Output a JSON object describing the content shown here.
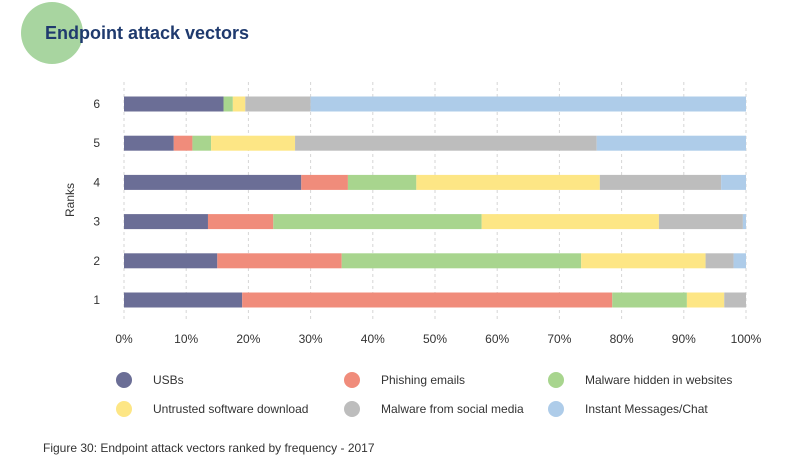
{
  "page": {
    "caption": "Figure 30: Endpoint attack vectors ranked by frequency - 2017"
  },
  "colors": {
    "title_badge": "#a8d5a0",
    "title_text": "#1f3a6e",
    "axis_text": "#333333",
    "grid": "#d6d6d6"
  },
  "chart_data": {
    "type": "bar",
    "orientation": "horizontal",
    "stacked": true,
    "title": "Endpoint attack vectors",
    "ylabel": "Ranks",
    "xlabel": "",
    "categories": [
      "1",
      "2",
      "3",
      "4",
      "5",
      "6"
    ],
    "xlim": [
      0,
      100
    ],
    "xticks": [
      "0%",
      "10%",
      "20%",
      "30%",
      "40%",
      "50%",
      "60%",
      "70%",
      "80%",
      "90%",
      "100%"
    ],
    "grid": "vertical dashed",
    "legend_position": "bottom",
    "series": [
      {
        "name": "USBs",
        "color": "#6b6e96",
        "values": [
          19,
          15,
          13.5,
          28.5,
          8,
          16
        ]
      },
      {
        "name": "Phishing emails",
        "color": "#f08c7b",
        "values": [
          59.5,
          20,
          10.5,
          7.5,
          3,
          0
        ]
      },
      {
        "name": "Malware hidden in websites",
        "color": "#a8d58e",
        "values": [
          12,
          38.5,
          33.5,
          11,
          3,
          1.5
        ]
      },
      {
        "name": "Untrusted software download",
        "color": "#fde685",
        "values": [
          6,
          20,
          28.5,
          29.5,
          13.5,
          2
        ]
      },
      {
        "name": "Malware from social media",
        "color": "#bdbdbd",
        "values": [
          3.5,
          4.5,
          13.5,
          19.5,
          48.5,
          10.5
        ]
      },
      {
        "name": "Instant Messages/Chat",
        "color": "#aecce9",
        "values": [
          0,
          2,
          0.5,
          4,
          24,
          70
        ]
      }
    ]
  }
}
